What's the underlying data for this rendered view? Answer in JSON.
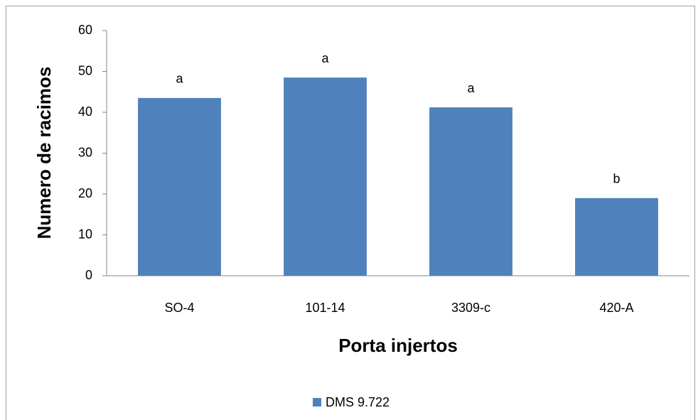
{
  "chart_data": {
    "type": "bar",
    "x_label": "Porta injertos",
    "y_label": "Numero de racimos",
    "categories": [
      "SO-4",
      "101-14",
      "3309-c",
      "420-A"
    ],
    "series": [
      {
        "name": "DMS 9.722",
        "color": "#4f81bd",
        "values": [
          43.5,
          48.5,
          41.2,
          19.0
        ]
      }
    ],
    "annotations": [
      "a",
      "a",
      "a",
      "b"
    ],
    "ylim": [
      0,
      60
    ],
    "yticks": [
      0,
      10,
      20,
      30,
      40,
      50,
      60
    ],
    "grid": false,
    "legend": "bottom"
  }
}
